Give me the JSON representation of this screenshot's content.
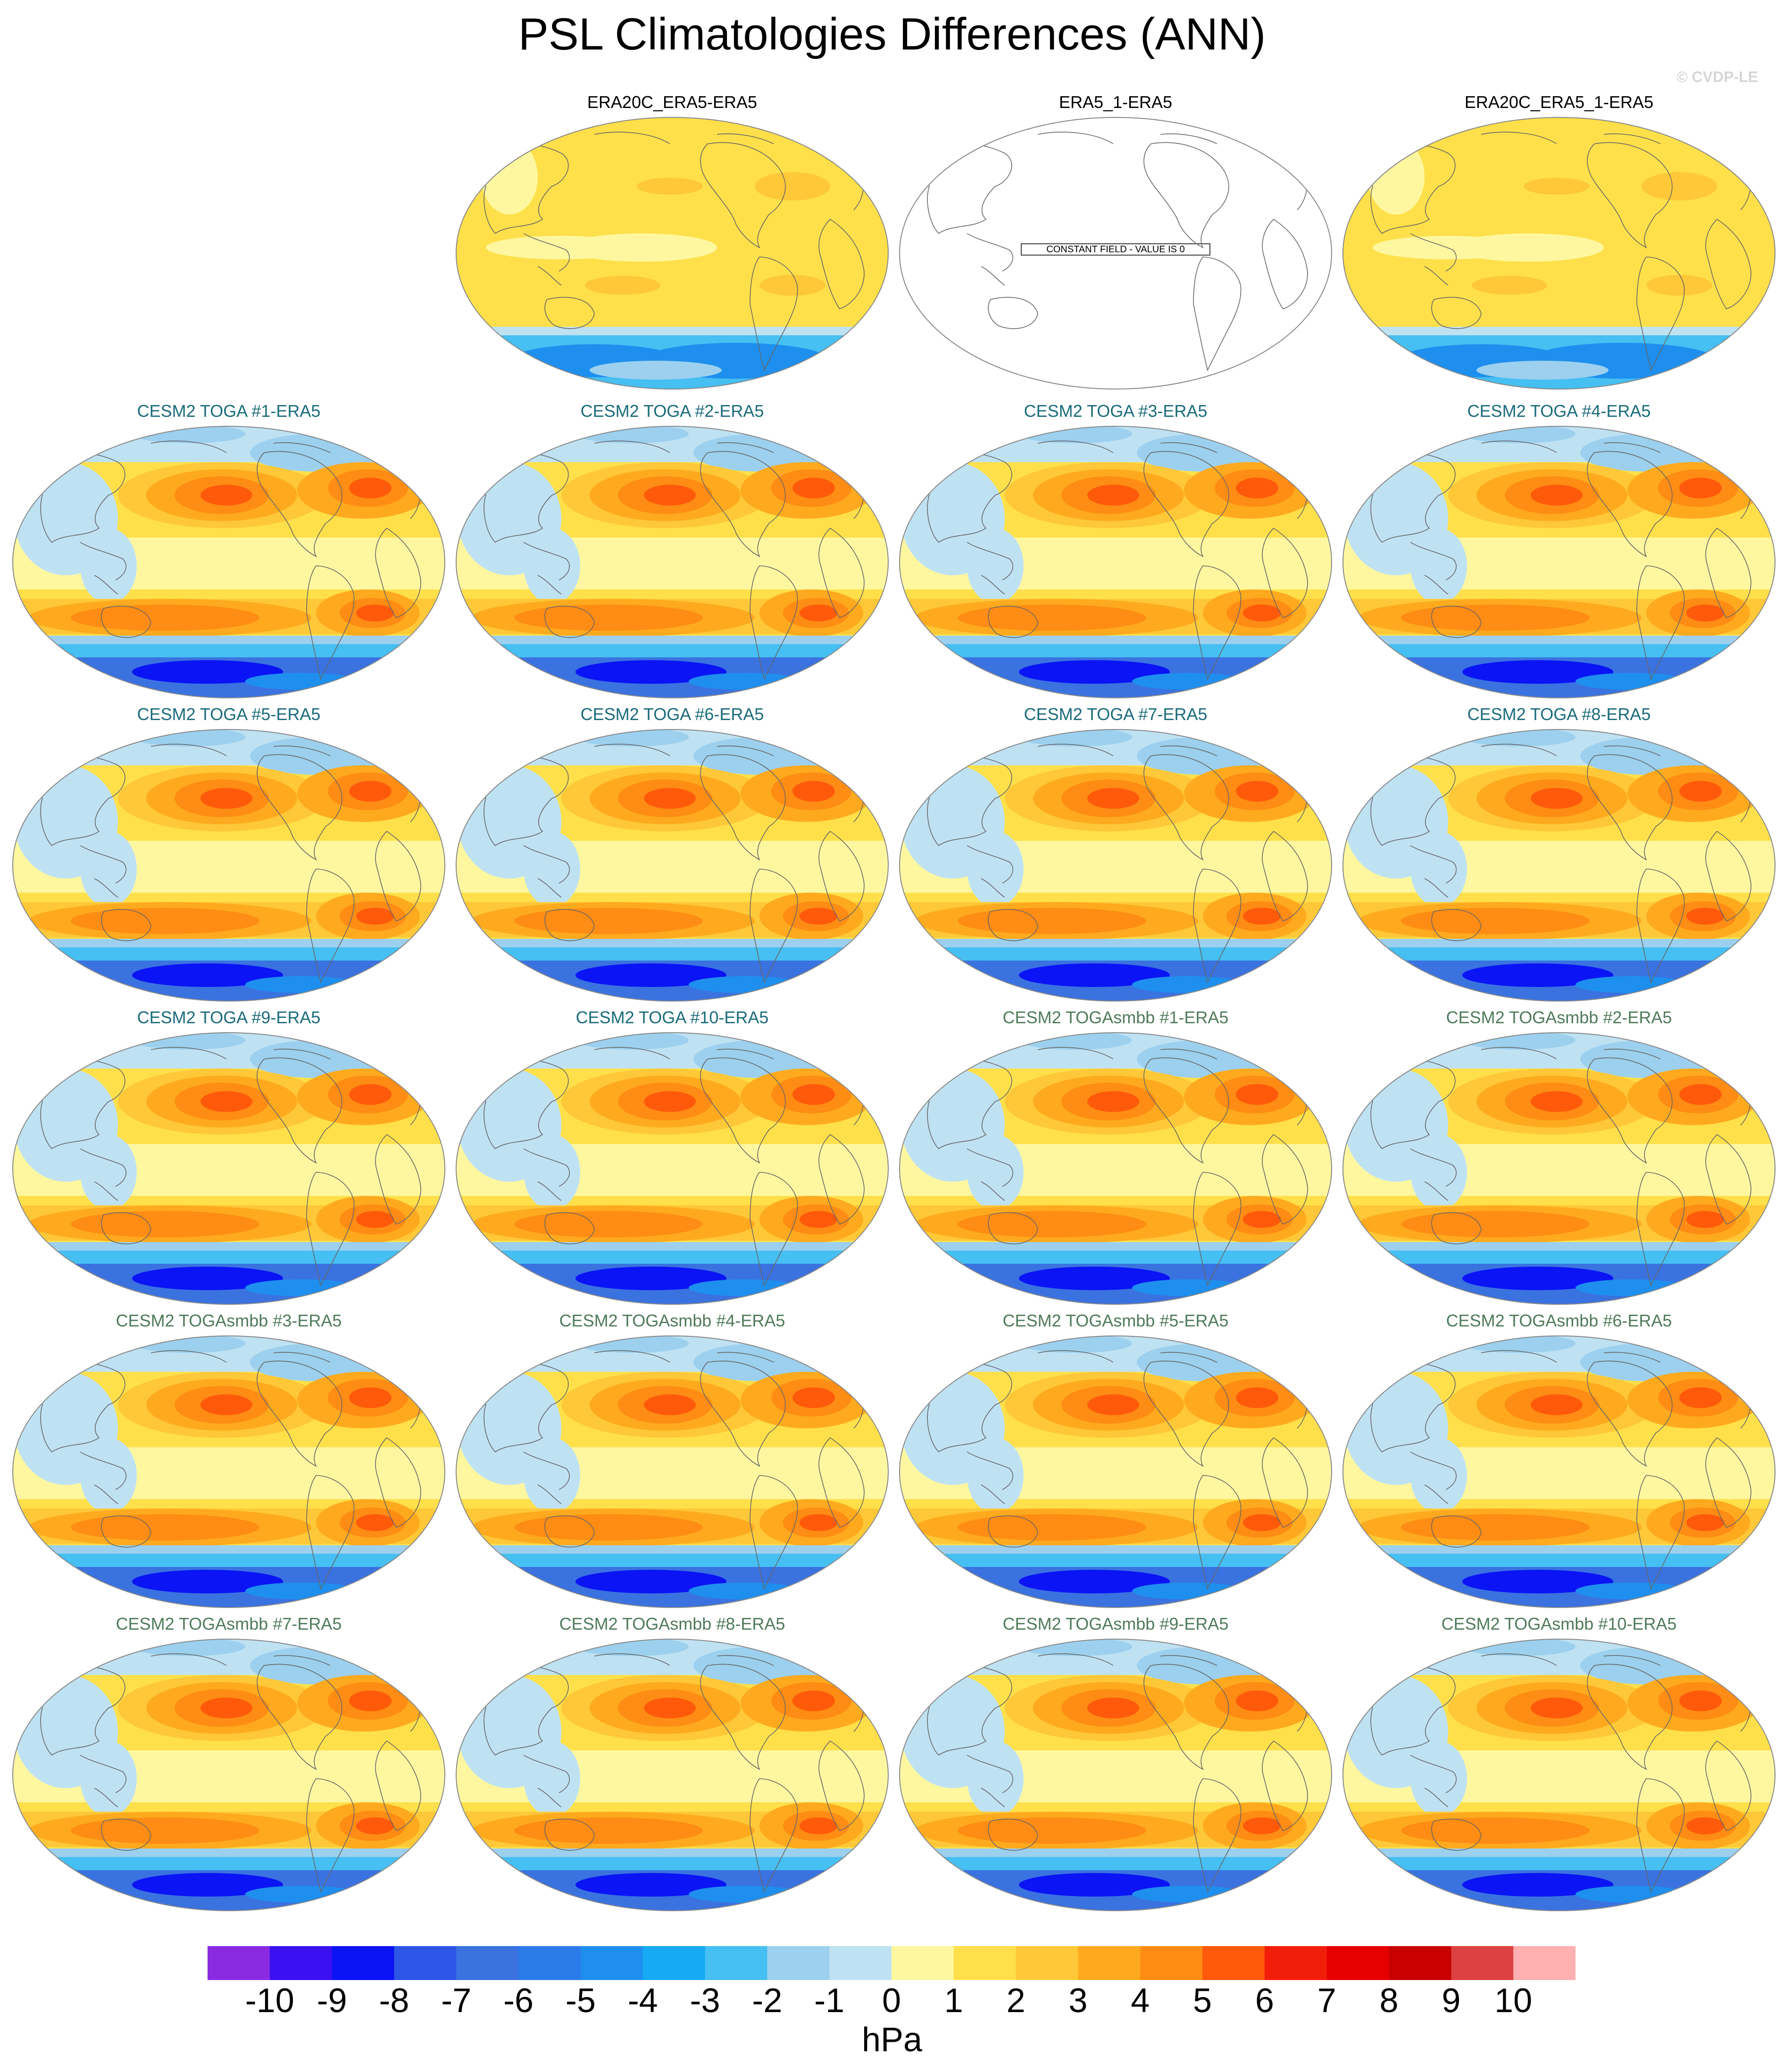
{
  "title": "PSL Climatologies Differences (ANN)",
  "watermark": "© CVDP-LE",
  "colorbar": {
    "units": "hPa",
    "ticks": [
      "-10",
      "-9",
      "-8",
      "-7",
      "-6",
      "-5",
      "-4",
      "-3",
      "-2",
      "-1",
      "0",
      "1",
      "2",
      "3",
      "4",
      "5",
      "6",
      "7",
      "8",
      "9",
      "10"
    ],
    "colors": [
      "#8a2be2",
      "#3a10f0",
      "#0a14f5",
      "#2d55e6",
      "#3a72e0",
      "#2b7bea",
      "#1e8fee",
      "#15aaf2",
      "#46bff2",
      "#9cd0ee",
      "#bfe2f3",
      "#fff7a0",
      "#ffe04a",
      "#ffc838",
      "#ffaa1e",
      "#ff8c14",
      "#ff5a0a",
      "#f21e0a",
      "#e60000",
      "#c80000",
      "#dd4040",
      "#ffb0b0"
    ]
  },
  "chart_data": {
    "type": "heatmap",
    "projection": "Robinson (global, 180° centered)",
    "units": "hPa",
    "levels": [
      -10,
      -9,
      -8,
      -7,
      -6,
      -5,
      -4,
      -3,
      -2,
      -1,
      0,
      1,
      2,
      3,
      4,
      5,
      6,
      7,
      8,
      9,
      10
    ],
    "panels": [
      {
        "title": "ERA20C_ERA5-ERA5",
        "group": "obs",
        "pattern": "obs"
      },
      {
        "title": "ERA5_1-ERA5",
        "group": "obs",
        "pattern": "constant",
        "note": "CONSTANT FIELD - VALUE IS 0"
      },
      {
        "title": "ERA20C_ERA5_1-ERA5",
        "group": "obs",
        "pattern": "obs"
      },
      {
        "title": "CESM2 TOGA #1-ERA5",
        "group": "toga",
        "pattern": "model"
      },
      {
        "title": "CESM2 TOGA #2-ERA5",
        "group": "toga",
        "pattern": "model"
      },
      {
        "title": "CESM2 TOGA #3-ERA5",
        "group": "toga",
        "pattern": "model"
      },
      {
        "title": "CESM2 TOGA #4-ERA5",
        "group": "toga",
        "pattern": "model"
      },
      {
        "title": "CESM2 TOGA #5-ERA5",
        "group": "toga",
        "pattern": "model"
      },
      {
        "title": "CESM2 TOGA #6-ERA5",
        "group": "toga",
        "pattern": "model"
      },
      {
        "title": "CESM2 TOGA #7-ERA5",
        "group": "toga",
        "pattern": "model"
      },
      {
        "title": "CESM2 TOGA #8-ERA5",
        "group": "toga",
        "pattern": "model"
      },
      {
        "title": "CESM2 TOGA #9-ERA5",
        "group": "toga",
        "pattern": "model"
      },
      {
        "title": "CESM2 TOGA #10-ERA5",
        "group": "toga",
        "pattern": "model"
      },
      {
        "title": "CESM2 TOGAsmbb #1-ERA5",
        "group": "smbb",
        "pattern": "model"
      },
      {
        "title": "CESM2 TOGAsmbb #2-ERA5",
        "group": "smbb",
        "pattern": "model"
      },
      {
        "title": "CESM2 TOGAsmbb #3-ERA5",
        "group": "smbb",
        "pattern": "model"
      },
      {
        "title": "CESM2 TOGAsmbb #4-ERA5",
        "group": "smbb",
        "pattern": "model"
      },
      {
        "title": "CESM2 TOGAsmbb #5-ERA5",
        "group": "smbb",
        "pattern": "model"
      },
      {
        "title": "CESM2 TOGAsmbb #6-ERA5",
        "group": "smbb",
        "pattern": "model"
      },
      {
        "title": "CESM2 TOGAsmbb #7-ERA5",
        "group": "smbb",
        "pattern": "model"
      },
      {
        "title": "CESM2 TOGAsmbb #8-ERA5",
        "group": "smbb",
        "pattern": "model"
      },
      {
        "title": "CESM2 TOGAsmbb #9-ERA5",
        "group": "smbb",
        "pattern": "model"
      },
      {
        "title": "CESM2 TOGAsmbb #10-ERA5",
        "group": "smbb",
        "pattern": "model"
      }
    ]
  }
}
